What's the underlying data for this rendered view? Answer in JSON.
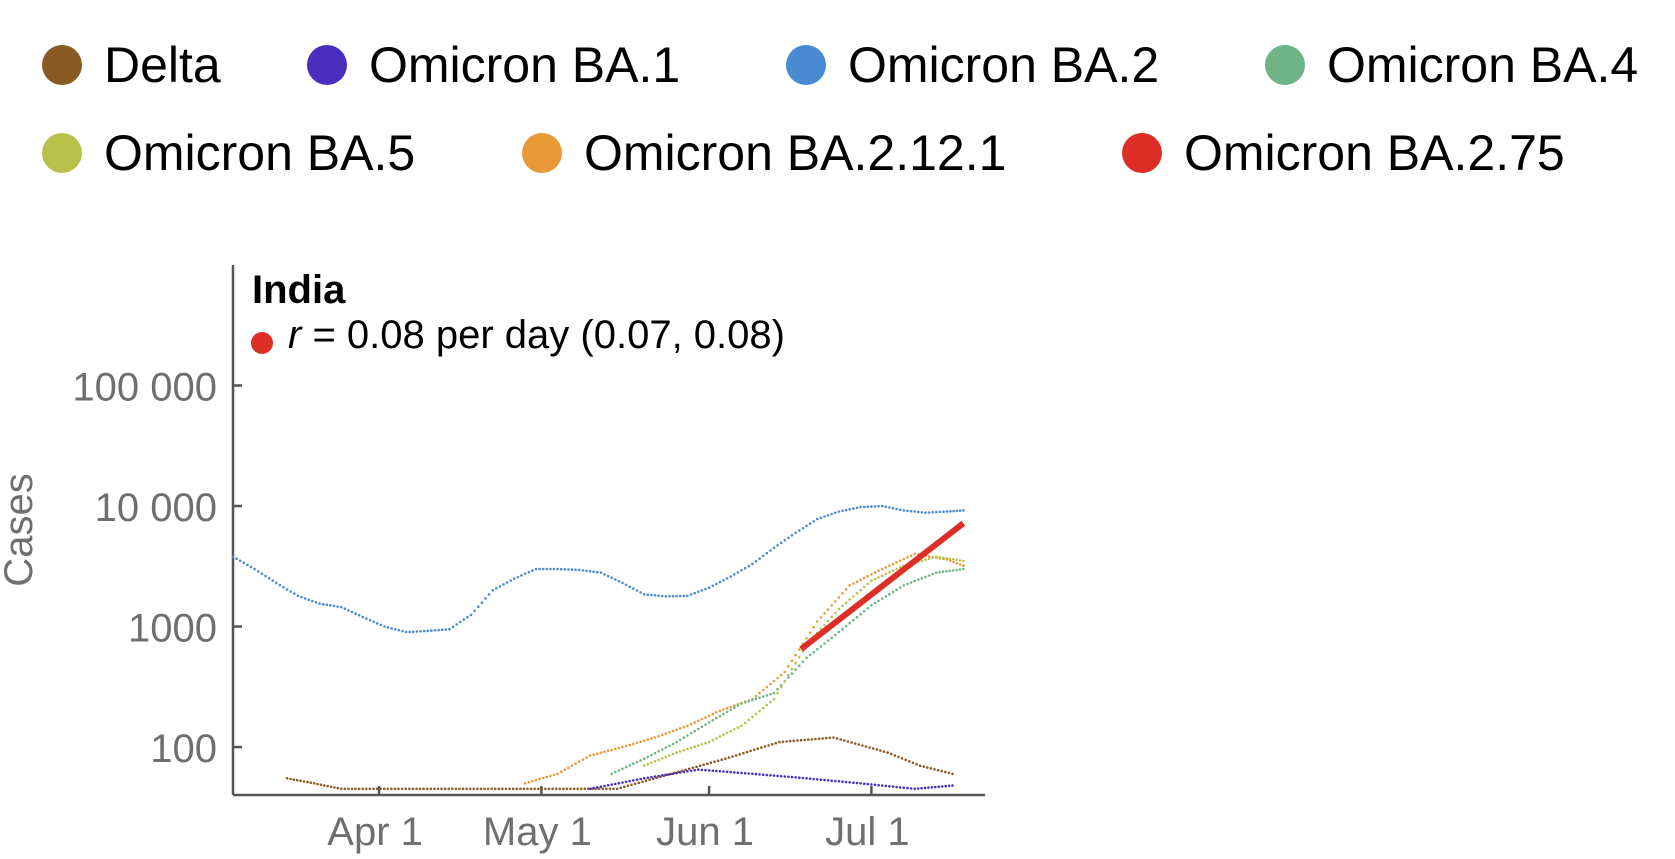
{
  "legend": {
    "items": [
      {
        "label": "Delta",
        "color": "#8B5A23"
      },
      {
        "label": "Omicron BA.1",
        "color": "#4A2EC0"
      },
      {
        "label": "Omicron BA.2",
        "color": "#4A8AD0"
      },
      {
        "label": "Omicron BA.4",
        "color": "#6FB487"
      },
      {
        "label": "Omicron BA.5",
        "color": "#B8C24A"
      },
      {
        "label": "Omicron BA.2.12.1",
        "color": "#E89A38"
      },
      {
        "label": "Omicron BA.2.75",
        "color": "#DC2E26"
      }
    ]
  },
  "chart_data": {
    "type": "scatter",
    "title": "India",
    "annotation": {
      "prefix": "r",
      "text": " = 0.08 per day (0.07, 0.08)",
      "color": "#DC2E26"
    },
    "ylabel": "Cases",
    "xlabel": "",
    "y_scale": "log",
    "ylim": [
      40,
      1000000
    ],
    "xlim": [
      "2022-03-05",
      "2022-07-22"
    ],
    "y_ticks": [
      {
        "value": 100,
        "label": "100"
      },
      {
        "value": 1000,
        "label": "1000"
      },
      {
        "value": 10000,
        "label": "10 000"
      },
      {
        "value": 100000,
        "label": "100 000"
      }
    ],
    "x_ticks": [
      {
        "date": "2022-04-01",
        "label": "Apr 1"
      },
      {
        "date": "2022-05-01",
        "label": "May 1"
      },
      {
        "date": "2022-06-01",
        "label": "Jun 1"
      },
      {
        "date": "2022-07-01",
        "label": "Jul 1"
      }
    ],
    "series": [
      {
        "name": "Omicron BA.2",
        "color": "#4A8AD0",
        "x": [
          "2022-03-05",
          "2022-03-09",
          "2022-03-13",
          "2022-03-17",
          "2022-03-21",
          "2022-03-25",
          "2022-03-29",
          "2022-04-02",
          "2022-04-06",
          "2022-04-10",
          "2022-04-14",
          "2022-04-18",
          "2022-04-22",
          "2022-04-26",
          "2022-04-30",
          "2022-05-04",
          "2022-05-08",
          "2022-05-12",
          "2022-05-16",
          "2022-05-20",
          "2022-05-24",
          "2022-05-28",
          "2022-06-01",
          "2022-06-05",
          "2022-06-09",
          "2022-06-13",
          "2022-06-17",
          "2022-06-21",
          "2022-06-25",
          "2022-06-29",
          "2022-07-03",
          "2022-07-07",
          "2022-07-11",
          "2022-07-15",
          "2022-07-18"
        ],
        "y": [
          3800,
          3000,
          2300,
          1800,
          1550,
          1450,
          1200,
          1000,
          900,
          920,
          950,
          1250,
          2000,
          2500,
          3000,
          3000,
          2950,
          2800,
          2300,
          1850,
          1780,
          1800,
          2100,
          2600,
          3300,
          4500,
          6000,
          7800,
          9000,
          9800,
          10000,
          9200,
          8800,
          9000,
          9200
        ]
      },
      {
        "name": "Omicron BA.2.12.1",
        "color": "#E89A38",
        "x": [
          "2022-04-28",
          "2022-05-04",
          "2022-05-10",
          "2022-05-16",
          "2022-05-22",
          "2022-05-28",
          "2022-06-03",
          "2022-06-09",
          "2022-06-15",
          "2022-06-21",
          "2022-06-27",
          "2022-07-03",
          "2022-07-09",
          "2022-07-15",
          "2022-07-18"
        ],
        "y": [
          50,
          60,
          85,
          100,
          120,
          150,
          200,
          250,
          420,
          1100,
          2200,
          3000,
          4000,
          3600,
          3200
        ]
      },
      {
        "name": "Omicron BA.4",
        "color": "#6FB487",
        "x": [
          "2022-05-14",
          "2022-05-20",
          "2022-05-26",
          "2022-06-01",
          "2022-06-07",
          "2022-06-13",
          "2022-06-19",
          "2022-06-25",
          "2022-07-01",
          "2022-07-07",
          "2022-07-13",
          "2022-07-18"
        ],
        "y": [
          60,
          80,
          110,
          160,
          230,
          280,
          550,
          900,
          1500,
          2200,
          2800,
          3000
        ]
      },
      {
        "name": "Omicron BA.5",
        "color": "#B8C24A",
        "x": [
          "2022-05-20",
          "2022-05-26",
          "2022-06-01",
          "2022-06-07",
          "2022-06-13",
          "2022-06-19",
          "2022-06-25",
          "2022-07-01",
          "2022-07-07",
          "2022-07-13",
          "2022-07-18"
        ],
        "y": [
          70,
          90,
          110,
          150,
          250,
          700,
          1400,
          2400,
          3200,
          3800,
          3500
        ]
      },
      {
        "name": "Delta",
        "color": "#8B5A23",
        "x": [
          "2022-03-15",
          "2022-03-20",
          "2022-03-25",
          "2022-05-15",
          "2022-05-25",
          "2022-06-04",
          "2022-06-14",
          "2022-06-24",
          "2022-07-04",
          "2022-07-10",
          "2022-07-16"
        ],
        "y": [
          55,
          50,
          45,
          45,
          60,
          80,
          110,
          120,
          90,
          70,
          60
        ]
      },
      {
        "name": "Omicron BA.1",
        "color": "#4A2EC0",
        "x": [
          "2022-05-10",
          "2022-05-20",
          "2022-05-30",
          "2022-06-09",
          "2022-06-19",
          "2022-06-29",
          "2022-07-09",
          "2022-07-16"
        ],
        "y": [
          45,
          55,
          65,
          60,
          55,
          50,
          45,
          48
        ]
      }
    ],
    "fit": {
      "name": "Omicron BA.2.75",
      "color": "#DC2E26",
      "x": [
        "2022-06-18",
        "2022-07-18"
      ],
      "y": [
        650,
        7200
      ]
    }
  }
}
